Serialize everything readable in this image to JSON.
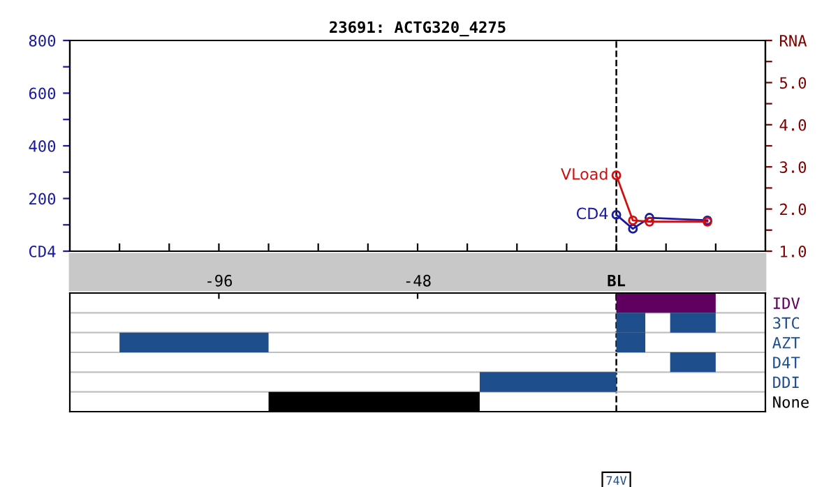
{
  "chart_data": [
    {
      "type": "line",
      "title": "23691: ACTG320_4275",
      "marker": "circle",
      "xlim": [
        -132,
        36
      ],
      "xticks": [
        {
          "value": -120,
          "label": null
        },
        {
          "value": -108,
          "label": null
        },
        -96,
        {
          "value": -84,
          "label": null
        },
        {
          "value": -72,
          "label": null
        },
        {
          "value": -60,
          "label": null
        },
        -48,
        {
          "value": -36,
          "label": null
        },
        {
          "value": -24,
          "label": null
        },
        {
          "value": -12,
          "label": null
        },
        {
          "value": 0,
          "label": "BL"
        },
        {
          "value": 12,
          "label": null
        },
        {
          "value": 24,
          "label": null
        }
      ],
      "ylim": [
        0,
        800
      ],
      "yticks": [
        {
          "value": 0,
          "label": "CD4"
        },
        {
          "value": 100,
          "label": null
        },
        200,
        {
          "value": 300,
          "label": null
        },
        400,
        {
          "value": 500,
          "label": null
        },
        600,
        {
          "value": 700,
          "label": null
        },
        800
      ],
      "y2lim": [
        1,
        6
      ],
      "y2ticks": [
        {
          "value": 1,
          "label": "1.0"
        },
        {
          "value": 1.5,
          "label": null
        },
        {
          "value": 2,
          "label": "2.0"
        },
        {
          "value": 2.5,
          "label": null
        },
        {
          "value": 3,
          "label": "3.0"
        },
        {
          "value": 3.5,
          "label": null
        },
        {
          "value": 4,
          "label": "4.0"
        },
        {
          "value": 4.5,
          "label": null
        },
        {
          "value": 5,
          "label": "5.0"
        },
        {
          "value": 5.5,
          "label": null
        },
        {
          "value": 6,
          "label": "RNA"
        }
      ],
      "ref_lines": [
        {
          "axis": "x",
          "value": 0,
          "label": null,
          "color": "#000000",
          "line_style": "dashed"
        }
      ],
      "series": [
        {
          "name": "CD4",
          "color": "#1a1aa0",
          "x": [
            0,
            4,
            8,
            22
          ],
          "values": [
            138,
            85,
            127,
            117
          ]
        },
        {
          "name": "VLoad",
          "color": "#d01010",
          "axis": "y2",
          "x": [
            0,
            4,
            8,
            22
          ],
          "values": [
            2.8,
            1.73,
            1.7,
            1.7
          ]
        }
      ]
    },
    {
      "type": "bar",
      "orientation": "horizontal",
      "tick_labels": "y",
      "grid": "y",
      "xlim": [
        -132,
        36
      ],
      "categories": [
        "IDV",
        "3TC",
        "AZT",
        "D4T",
        "DDI",
        "None"
      ],
      "ref_lines": [
        {
          "axis": "x",
          "value": 0,
          "label": null,
          "color": "#000000",
          "line_style": "dashed"
        }
      ],
      "xticks": [
        {
          "value": -96,
          "label": null
        },
        {
          "value": -48,
          "label": null
        },
        {
          "value": 0,
          "label": null
        }
      ],
      "annotations": [
        "74V"
      ],
      "series": [
        {
          "base": [
            0,
            0,
            -120,
            13,
            -33,
            -84
          ],
          "values": [
            24,
            7,
            36,
            11,
            33,
            51
          ],
          "colors": [
            "#5f0060",
            "#1f4e8c",
            "#1f4e8c",
            "#1f4e8c",
            "#1f4e8c",
            "#000000"
          ]
        },
        {
          "base": [
            null,
            13,
            0,
            null,
            null,
            null
          ],
          "values": [
            null,
            11,
            7,
            null,
            null,
            null
          ],
          "colors": [
            "#1f4e8c",
            "#1f4e8c",
            "#1f4e8c",
            "#1f4e8c",
            "#1f4e8c",
            "#1f4e8c"
          ]
        }
      ]
    }
  ]
}
